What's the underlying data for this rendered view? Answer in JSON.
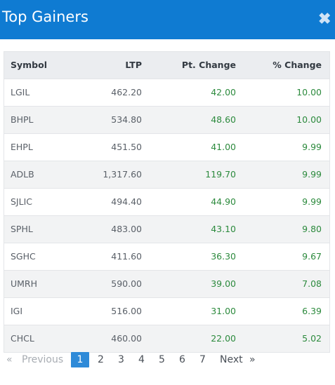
{
  "header": {
    "title": "Top Gainers",
    "close_icon": "close-icon"
  },
  "table": {
    "columns": [
      "Symbol",
      "LTP",
      "Pt. Change",
      "% Change"
    ],
    "rows": [
      [
        "LGIL",
        "462.20",
        "42.00",
        "10.00"
      ],
      [
        "BHPL",
        "534.80",
        "48.60",
        "10.00"
      ],
      [
        "EHPL",
        "451.50",
        "41.00",
        "9.99"
      ],
      [
        "ADLB",
        "1,317.60",
        "119.70",
        "9.99"
      ],
      [
        "SJLIC",
        "494.40",
        "44.90",
        "9.99"
      ],
      [
        "SPHL",
        "483.00",
        "43.10",
        "9.80"
      ],
      [
        "SGHC",
        "411.60",
        "36.30",
        "9.67"
      ],
      [
        "UMRH",
        "590.00",
        "39.00",
        "7.08"
      ],
      [
        "IGI",
        "516.00",
        "31.00",
        "6.39"
      ],
      [
        "CHCL",
        "460.00",
        "22.00",
        "5.02"
      ]
    ]
  },
  "pagination": {
    "prev_arrow": "«",
    "prev_label": "Previous",
    "pages": [
      "1",
      "2",
      "3",
      "4",
      "5",
      "6",
      "7"
    ],
    "active_page": "1",
    "next_label": "Next",
    "next_arrow": "»"
  },
  "colors": {
    "header": "#0f7bd2",
    "positive": "#2c8a3d",
    "active_page": "#2e8ad8"
  }
}
